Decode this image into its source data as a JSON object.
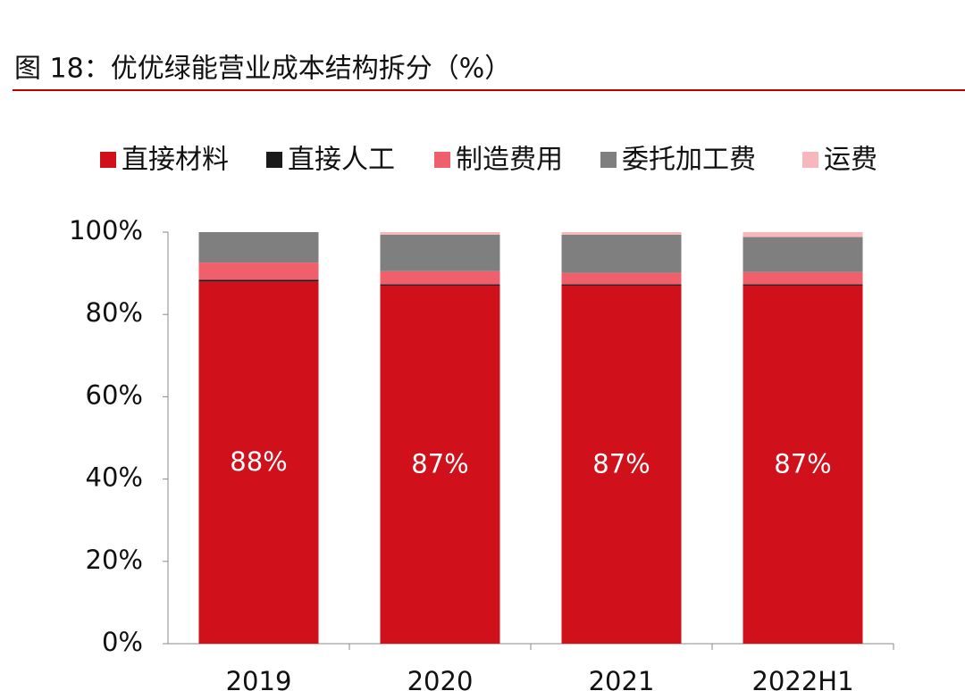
{
  "chart_data": {
    "type": "stacked_bar",
    "title": "图 18：优优绿能营业成本结构拆分（%）",
    "categories": [
      "2019",
      "2020",
      "2021",
      "2022H1"
    ],
    "series": [
      {
        "name": "直接材料",
        "color": "#d0101b",
        "values": [
          88,
          87,
          87,
          87
        ],
        "value_labels": [
          "88%",
          "87%",
          "87%",
          "87%"
        ]
      },
      {
        "name": "直接人工",
        "color": "#1a1a1a",
        "values": [
          0.4,
          0.3,
          0.3,
          0.3
        ]
      },
      {
        "name": "制造费用",
        "color": "#ef5f6c",
        "values": [
          4.2,
          3.2,
          2.8,
          3.0
        ]
      },
      {
        "name": "委托加工费",
        "color": "#7f7f7f",
        "values": [
          7.4,
          8.9,
          9.3,
          8.5
        ]
      },
      {
        "name": "运费",
        "color": "#f7b7bd",
        "values": [
          0,
          0.6,
          0.6,
          1.2
        ]
      }
    ],
    "ylim": [
      0,
      100
    ],
    "yticks": [
      {
        "value": 0,
        "label": "0%"
      },
      {
        "value": 20,
        "label": "20%"
      },
      {
        "value": 40,
        "label": "40%"
      },
      {
        "value": 60,
        "label": "60%"
      },
      {
        "value": 80,
        "label": "80%"
      },
      {
        "value": 100,
        "label": "100%"
      }
    ],
    "legend": "top"
  }
}
